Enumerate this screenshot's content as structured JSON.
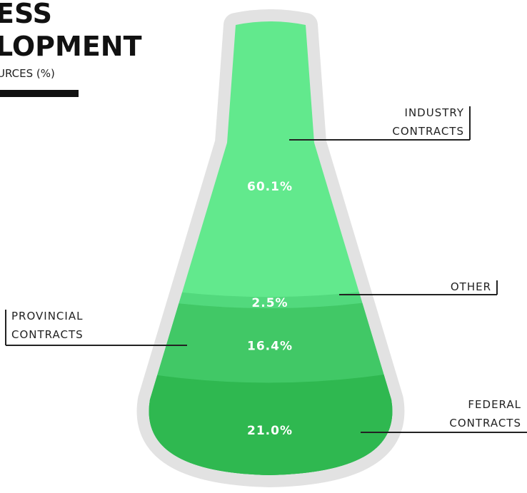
{
  "chart_data": {
    "type": "flask",
    "title_lines": [
      "ESS",
      "LOPMENT"
    ],
    "subtitle": "URCES (%)",
    "categories": [
      "INDUSTRY CONTRACTS",
      "OTHER",
      "PROVINCIAL CONTRACTS",
      "FEDERAL CONTRACTS"
    ],
    "values": [
      60.1,
      2.5,
      16.4,
      21.0
    ],
    "value_labels": [
      "60.1%",
      "2.5%",
      "16.4%",
      "21.0%"
    ],
    "colors": [
      "#62e98d",
      "#52d97d",
      "#41c866",
      "#2fb850"
    ]
  }
}
